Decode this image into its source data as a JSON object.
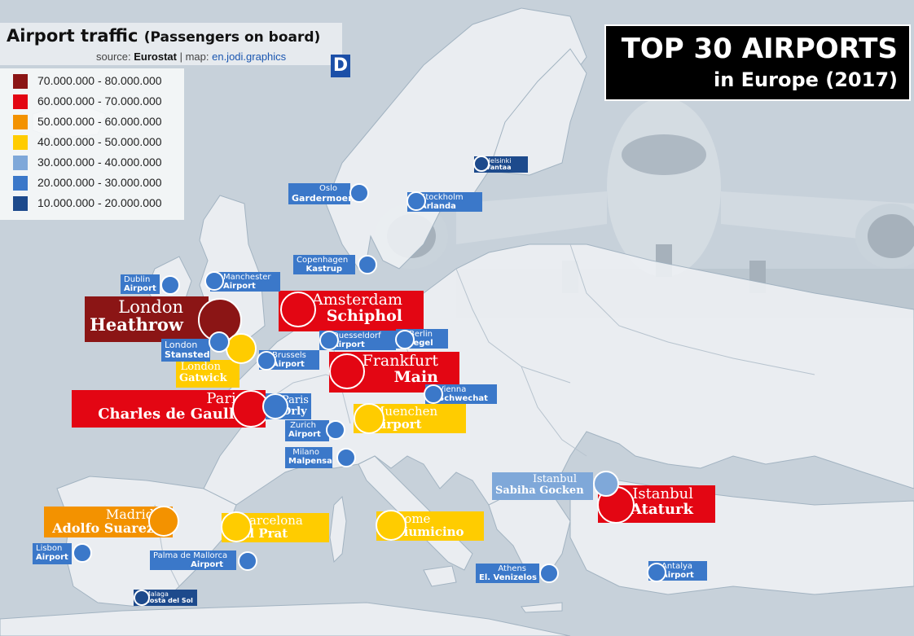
{
  "title": "Airport traffic",
  "subtitle": "(Passengers on board)",
  "source_prefix": "source: ",
  "source_name": "Eurostat",
  "map_prefix": " | map: ",
  "map_credit": "en.jodi.graphics",
  "logo_text": "D",
  "top_title": "TOP 30 AIRPORTS",
  "top_subtitle": "in Europe (2017)",
  "legend": [
    {
      "label": "70.000.000 - 80.000.000",
      "color": "#8b1515"
    },
    {
      "label": "60.000.000 - 70.000.000",
      "color": "#e30613"
    },
    {
      "label": "50.000.000 - 60.000.000",
      "color": "#f39200"
    },
    {
      "label": "40.000.000 - 50.000.000",
      "color": "#ffcc00"
    },
    {
      "label": "30.000.000 - 40.000.000",
      "color": "#7fa8d9"
    },
    {
      "label": "20.000.000 - 30.000.000",
      "color": "#3b78c9"
    },
    {
      "label": "10.000.000 - 20.000.000",
      "color": "#1d4a8c"
    }
  ],
  "airports": [
    {
      "city": "London",
      "name": "Heathrow",
      "band": 0
    },
    {
      "city": "Amsterdam",
      "name": "Schiphol",
      "band": 1
    },
    {
      "city": "Frankfurt",
      "name": "Main",
      "band": 1
    },
    {
      "city": "Paris",
      "name": "Charles de Gaulle",
      "band": 1
    },
    {
      "city": "Istanbul",
      "name": "Ataturk",
      "band": 1
    },
    {
      "city": "Madrid",
      "name": "Adolfo Suarez",
      "band": 2
    },
    {
      "city": "London",
      "name": "Gatwick",
      "band": 3
    },
    {
      "city": "Muenchen",
      "name": "Airport",
      "band": 3
    },
    {
      "city": "Barcelona",
      "name": "El Prat",
      "band": 3
    },
    {
      "city": "Rome",
      "name": "Fiumicino",
      "band": 3
    },
    {
      "city": "Istanbul",
      "name": "Sabiha Gocken",
      "band": 4
    },
    {
      "city": "Paris",
      "name": "Orly",
      "band": 5
    },
    {
      "city": "London",
      "name": "Stansted",
      "band": 5
    },
    {
      "city": "Dublin",
      "name": "Airport",
      "band": 5
    },
    {
      "city": "Manchester",
      "name": "Airport",
      "band": 5
    },
    {
      "city": "Brussels",
      "name": "Airport",
      "band": 5
    },
    {
      "city": "Duesseldorf",
      "name": "Airport",
      "band": 5
    },
    {
      "city": "Berlin",
      "name": "Tegel",
      "band": 5
    },
    {
      "city": "Copenhagen",
      "name": "Kastrup",
      "band": 5
    },
    {
      "city": "Oslo",
      "name": "Gardermoen",
      "band": 5
    },
    {
      "city": "Stockholm",
      "name": "Arlanda",
      "band": 5
    },
    {
      "city": "Vienna",
      "name": "Schwechat",
      "band": 5
    },
    {
      "city": "Zurich",
      "name": "Airport",
      "band": 5
    },
    {
      "city": "Milano",
      "name": "Malpensa",
      "band": 5
    },
    {
      "city": "Lisbon",
      "name": "Airport",
      "band": 5
    },
    {
      "city": "Palma de Mallorca",
      "name": "Airport",
      "band": 5
    },
    {
      "city": "Athens",
      "name": "El. Venizelos",
      "band": 5
    },
    {
      "city": "Antalya",
      "name": "Airport",
      "band": 5
    },
    {
      "city": "Helsinki",
      "name": "Vantaa",
      "band": 6
    },
    {
      "city": "Malaga",
      "name": "Costa del Sol",
      "band": 6
    }
  ]
}
